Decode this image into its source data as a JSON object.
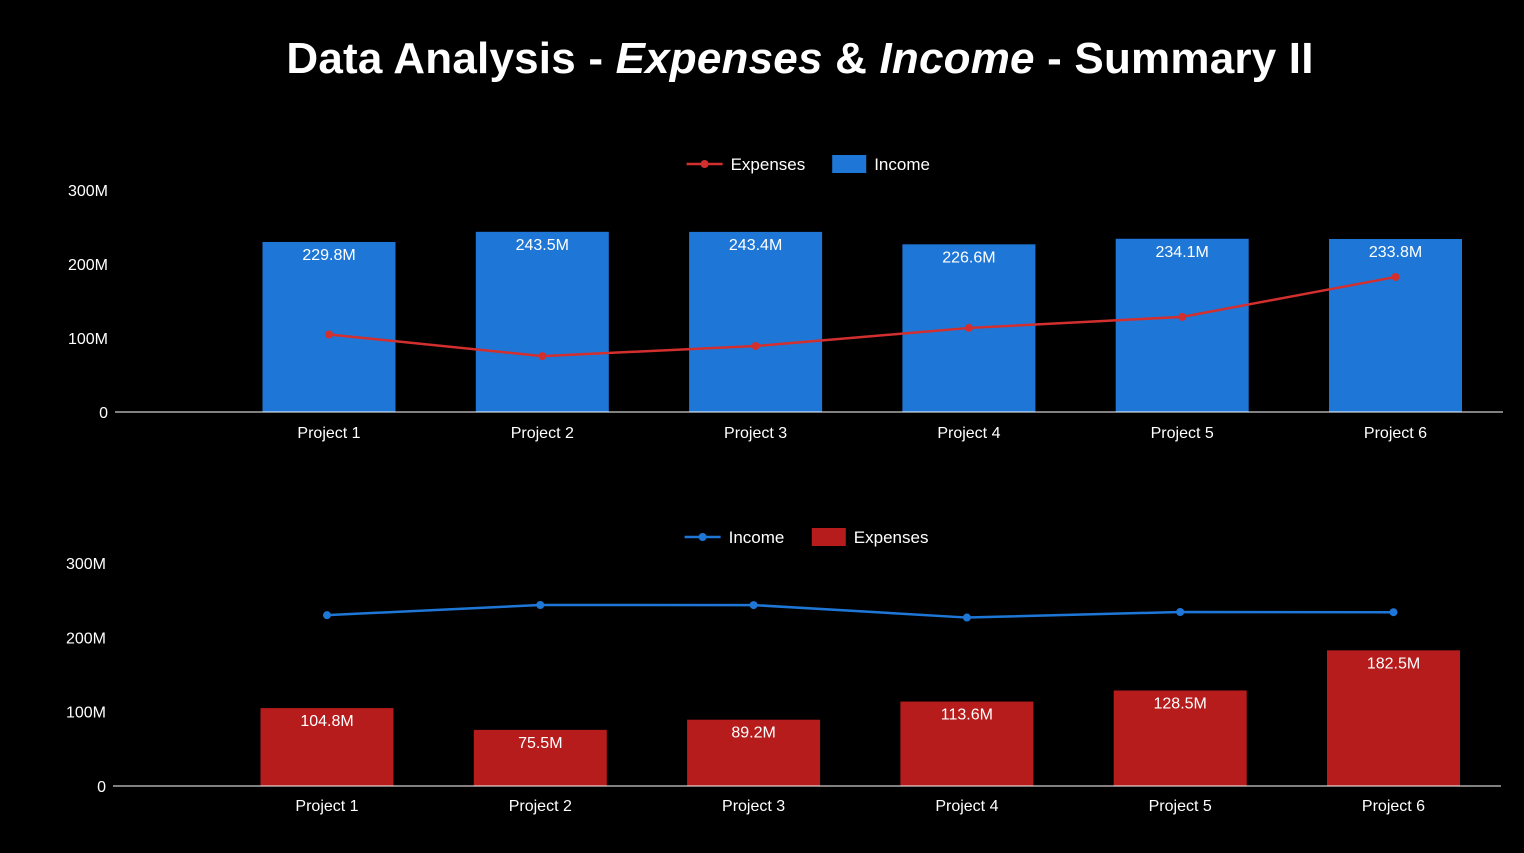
{
  "title": {
    "part1": "Data Analysis - ",
    "part2": "Expenses",
    "part3": " & ",
    "part4": "Income",
    "part5": " - Summary II"
  },
  "colors": {
    "background": "#000000",
    "income": "#1e77d6",
    "expenses": "#b71c1c",
    "expenses_line": "#d32f2f",
    "income_line": "#1e77d6",
    "axis": "#ffffff"
  },
  "chart_data": [
    {
      "type": "bar",
      "title": "",
      "categories": [
        "Project 1",
        "Project 2",
        "Project 3",
        "Project 4",
        "Project 5",
        "Project 6"
      ],
      "series": [
        {
          "name": "Income",
          "type": "bar",
          "values": [
            229.8,
            243.5,
            243.4,
            226.6,
            234.1,
            233.8
          ],
          "labels": [
            "229.8M",
            "243.5M",
            "243.4M",
            "226.6M",
            "234.1M",
            "233.8M"
          ]
        },
        {
          "name": "Expenses",
          "type": "line",
          "values": [
            104.8,
            75.5,
            89.2,
            113.6,
            128.5,
            182.5
          ]
        }
      ],
      "legend_order": [
        "Expenses",
        "Income"
      ],
      "yticks": [
        "0",
        "100M",
        "200M",
        "300M"
      ],
      "ylim": [
        0,
        300
      ],
      "legend": "top-center",
      "grid": false
    },
    {
      "type": "bar",
      "title": "",
      "categories": [
        "Project 1",
        "Project 2",
        "Project 3",
        "Project 4",
        "Project 5",
        "Project 6"
      ],
      "series": [
        {
          "name": "Expenses",
          "type": "bar",
          "values": [
            104.8,
            75.5,
            89.2,
            113.6,
            128.5,
            182.5
          ],
          "labels": [
            "104.8M",
            "75.5M",
            "89.2M",
            "113.6M",
            "128.5M",
            "182.5M"
          ]
        },
        {
          "name": "Income",
          "type": "line",
          "values": [
            229.8,
            243.5,
            243.4,
            226.6,
            234.1,
            233.8
          ]
        }
      ],
      "legend_order": [
        "Income",
        "Expenses"
      ],
      "yticks": [
        "0",
        "100M",
        "200M",
        "300M"
      ],
      "ylim": [
        0,
        300
      ],
      "legend": "top-center",
      "grid": false
    }
  ]
}
